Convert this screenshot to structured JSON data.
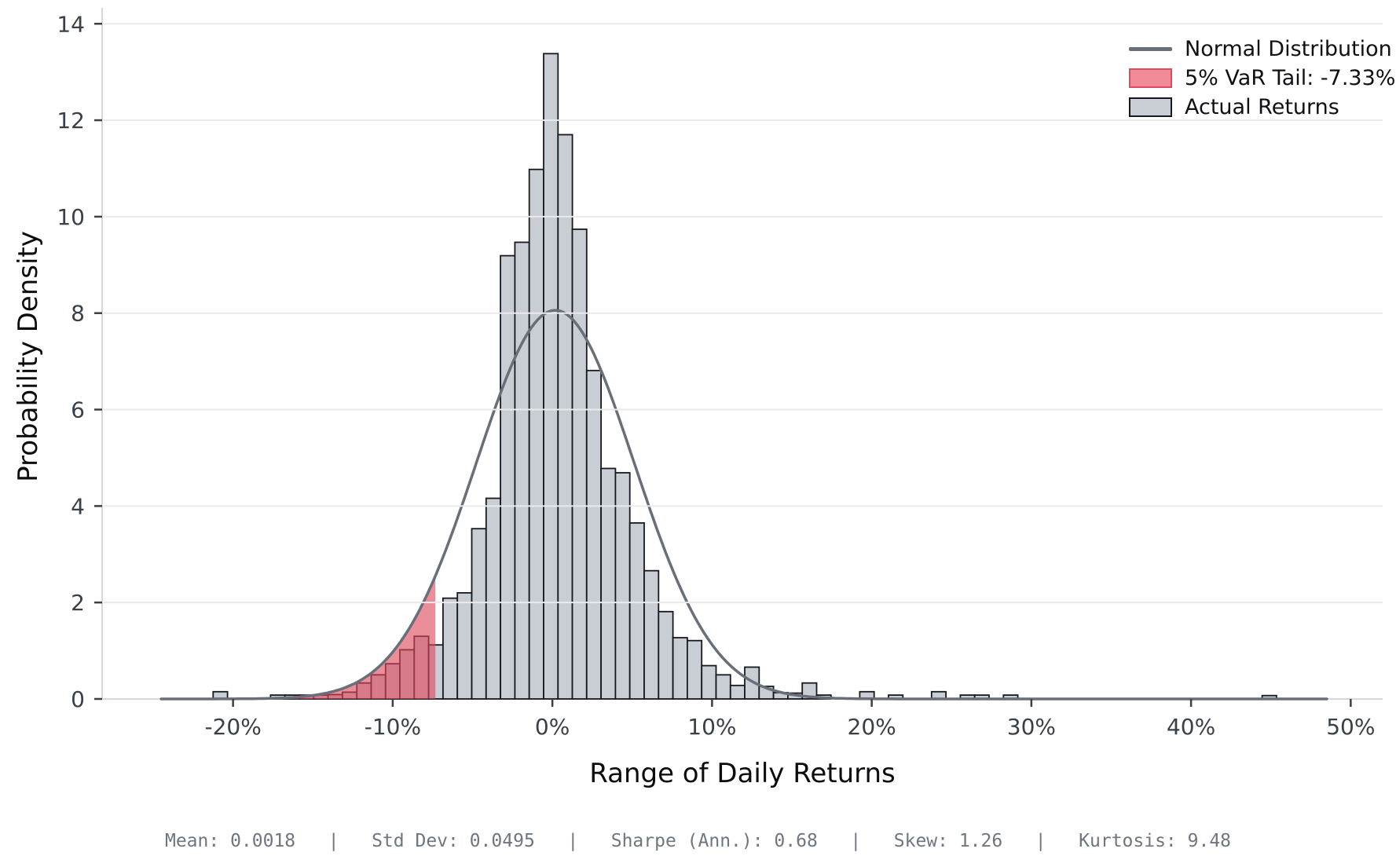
{
  "chart_data": {
    "type": "bar",
    "subtype": "histogram_with_normal_density_overlay",
    "title": "",
    "xlabel": "Range of Daily Returns",
    "ylabel": "Probability Density",
    "xlim": [
      -0.282,
      0.52
    ],
    "ylim": [
      0,
      14.33
    ],
    "grid": "horizontal",
    "x_ticks": [
      {
        "v": -0.2,
        "label": "-20%"
      },
      {
        "v": -0.1,
        "label": "-10%"
      },
      {
        "v": 0.0,
        "label": "0%"
      },
      {
        "v": 0.1,
        "label": "10%"
      },
      {
        "v": 0.2,
        "label": "20%"
      },
      {
        "v": 0.3,
        "label": "30%"
      },
      {
        "v": 0.4,
        "label": "40%"
      },
      {
        "v": 0.5,
        "label": "50%"
      }
    ],
    "y_ticks": [
      0,
      2,
      4,
      6,
      8,
      10,
      12,
      14
    ],
    "bin_width_pct": 0.9,
    "bins_center_pct_and_density": [
      [
        -20.8,
        0.15
      ],
      [
        -17.2,
        0.08
      ],
      [
        -16.3,
        0.08
      ],
      [
        -15.4,
        0.08
      ],
      [
        -14.5,
        0.08
      ],
      [
        -13.6,
        0.09
      ],
      [
        -12.7,
        0.14
      ],
      [
        -11.8,
        0.33
      ],
      [
        -10.9,
        0.5
      ],
      [
        -10.0,
        0.73
      ],
      [
        -9.1,
        1.02
      ],
      [
        -8.2,
        1.3
      ],
      [
        -7.3,
        1.12
      ],
      [
        -6.4,
        2.09
      ],
      [
        -5.5,
        2.2
      ],
      [
        -4.6,
        3.53
      ],
      [
        -3.7,
        4.16
      ],
      [
        -2.8,
        9.19
      ],
      [
        -1.9,
        9.47
      ],
      [
        -1.0,
        10.98
      ],
      [
        -0.1,
        13.38
      ],
      [
        0.8,
        11.7
      ],
      [
        1.7,
        9.74
      ],
      [
        2.6,
        6.81
      ],
      [
        3.5,
        4.78
      ],
      [
        4.4,
        4.69
      ],
      [
        5.3,
        3.65
      ],
      [
        6.2,
        2.66
      ],
      [
        7.1,
        1.81
      ],
      [
        8.0,
        1.27
      ],
      [
        8.9,
        1.21
      ],
      [
        9.8,
        0.69
      ],
      [
        10.7,
        0.5
      ],
      [
        11.6,
        0.28
      ],
      [
        12.5,
        0.66
      ],
      [
        13.4,
        0.26
      ],
      [
        14.3,
        0.13
      ],
      [
        15.2,
        0.12
      ],
      [
        16.1,
        0.33
      ],
      [
        17.0,
        0.08
      ],
      [
        19.7,
        0.15
      ],
      [
        21.5,
        0.08
      ],
      [
        24.2,
        0.15
      ],
      [
        26.0,
        0.08
      ],
      [
        26.9,
        0.08
      ],
      [
        28.7,
        0.08
      ],
      [
        44.9,
        0.07
      ]
    ],
    "normal_curve": {
      "mean": 0.0018,
      "std": 0.0495,
      "peak_density": 8.06,
      "x_start": -0.245,
      "x_end": 0.486
    },
    "var_threshold": -0.0733,
    "legend": {
      "position": "upper right",
      "items": [
        {
          "label": "Normal Distribution",
          "swatch": "line"
        },
        {
          "label": "5% VaR Tail: -7.33%",
          "swatch": "red-patch"
        },
        {
          "label": "Actual Returns",
          "swatch": "gray-patch"
        }
      ]
    },
    "stats_line": "Mean: 0.0018   |   Std Dev: 0.0495   |   Sharpe (Ann.): 0.68   |   Skew: 1.26   |   Kurtosis: 9.48",
    "stats_values": {
      "mean": 0.0018,
      "std_dev": 0.0495,
      "sharpe_annualized": 0.68,
      "skew": 1.26,
      "kurtosis": 9.48
    },
    "colors": {
      "bar_fill": "#c9cdd4",
      "bar_edge": "#17191d",
      "curve": "#696f78",
      "var_fill": "#e0475c",
      "var_fill_opacity": 0.62,
      "var_swatch_fill": "#ef8a96",
      "var_swatch_border": "#e04a5e",
      "grid": "#eaeaec",
      "spine": "#d5d8dc",
      "tick_text": "#3a4047",
      "stats_text": "#6e7680"
    }
  }
}
